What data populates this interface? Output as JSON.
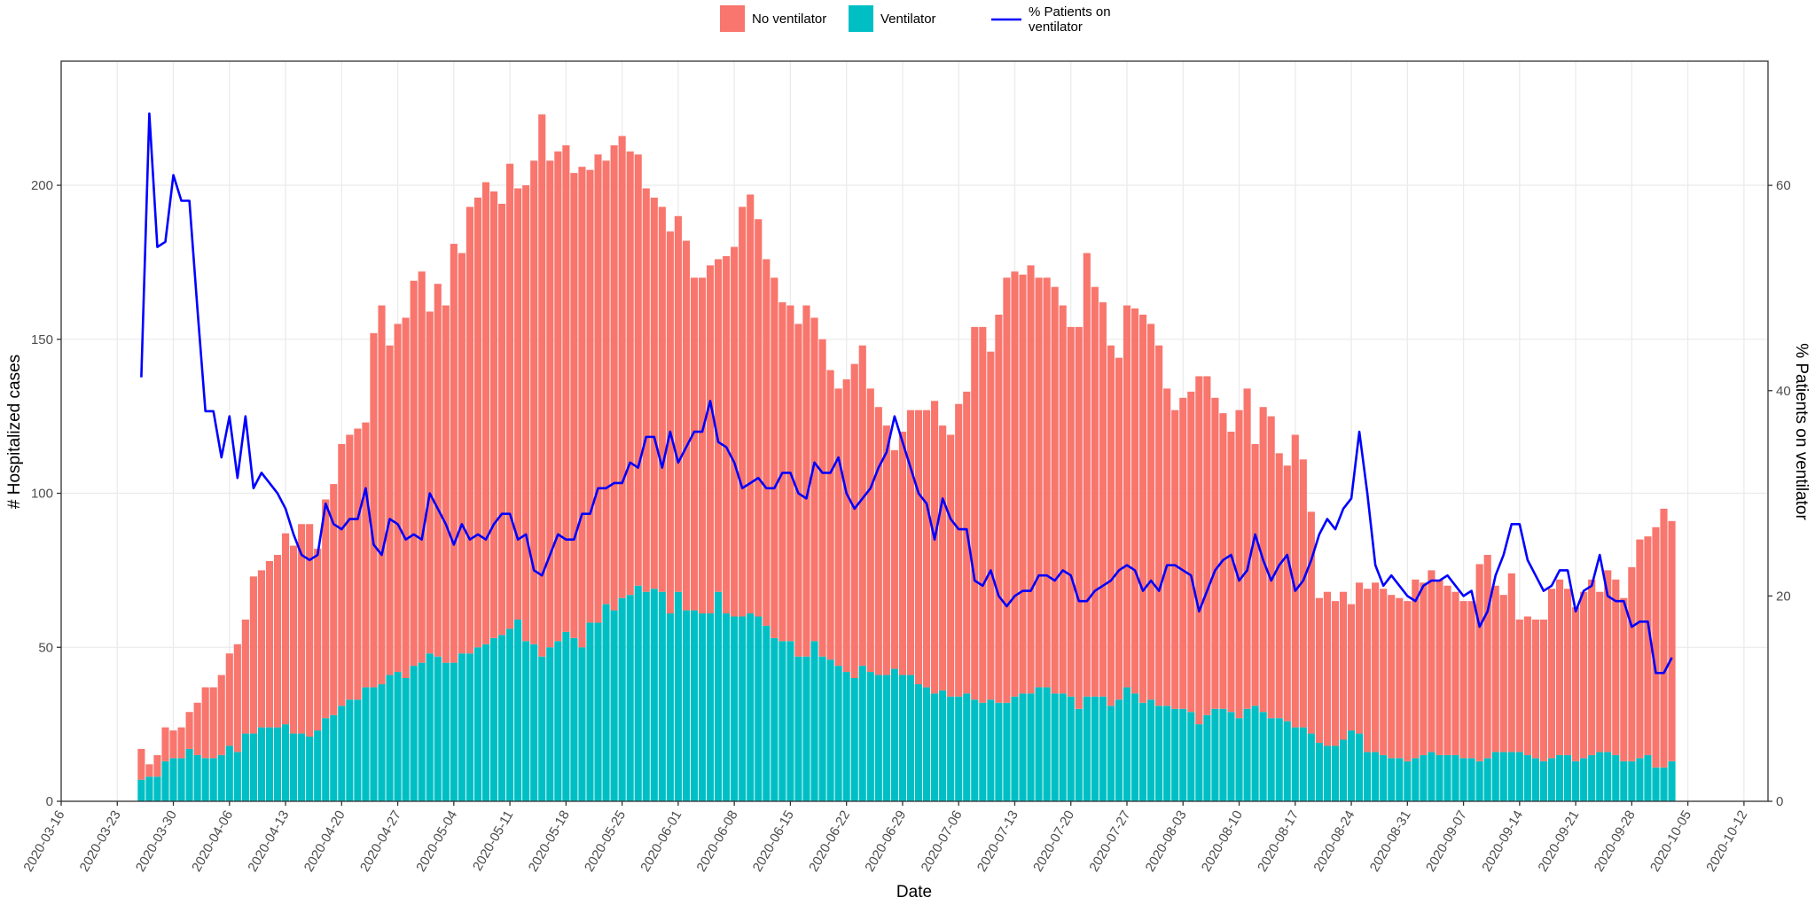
{
  "chart_data": {
    "type": "bar",
    "x_label": "Date",
    "y_label": "# Hospitalized cases",
    "y2_label": "% Patients on ventilator",
    "x": [
      "2020-03-26",
      "2020-03-27",
      "2020-03-28",
      "2020-03-29",
      "2020-03-30",
      "2020-03-31",
      "2020-04-01",
      "2020-04-02",
      "2020-04-03",
      "2020-04-04",
      "2020-04-05",
      "2020-04-06",
      "2020-04-07",
      "2020-04-08",
      "2020-04-09",
      "2020-04-10",
      "2020-04-11",
      "2020-04-12",
      "2020-04-13",
      "2020-04-14",
      "2020-04-15",
      "2020-04-16",
      "2020-04-17",
      "2020-04-18",
      "2020-04-19",
      "2020-04-20",
      "2020-04-21",
      "2020-04-22",
      "2020-04-23",
      "2020-04-24",
      "2020-04-25",
      "2020-04-26",
      "2020-04-27",
      "2020-04-28",
      "2020-04-29",
      "2020-04-30",
      "2020-05-01",
      "2020-05-02",
      "2020-05-03",
      "2020-05-04",
      "2020-05-05",
      "2020-05-06",
      "2020-05-07",
      "2020-05-08",
      "2020-05-09",
      "2020-05-10",
      "2020-05-11",
      "2020-05-12",
      "2020-05-13",
      "2020-05-14",
      "2020-05-15",
      "2020-05-16",
      "2020-05-17",
      "2020-05-18",
      "2020-05-19",
      "2020-05-20",
      "2020-05-21",
      "2020-05-22",
      "2020-05-23",
      "2020-05-24",
      "2020-05-25",
      "2020-05-26",
      "2020-05-27",
      "2020-05-28",
      "2020-05-29",
      "2020-05-30",
      "2020-05-31",
      "2020-06-01",
      "2020-06-02",
      "2020-06-03",
      "2020-06-04",
      "2020-06-05",
      "2020-06-06",
      "2020-06-07",
      "2020-06-08",
      "2020-06-09",
      "2020-06-10",
      "2020-06-11",
      "2020-06-12",
      "2020-06-13",
      "2020-06-14",
      "2020-06-15",
      "2020-06-16",
      "2020-06-17",
      "2020-06-18",
      "2020-06-19",
      "2020-06-20",
      "2020-06-21",
      "2020-06-22",
      "2020-06-23",
      "2020-06-24",
      "2020-06-25",
      "2020-06-26",
      "2020-06-27",
      "2020-06-28",
      "2020-06-29",
      "2020-06-30",
      "2020-07-01",
      "2020-07-02",
      "2020-07-03",
      "2020-07-04",
      "2020-07-05",
      "2020-07-06",
      "2020-07-07",
      "2020-07-08",
      "2020-07-09",
      "2020-07-10",
      "2020-07-11",
      "2020-07-12",
      "2020-07-13",
      "2020-07-14",
      "2020-07-15",
      "2020-07-16",
      "2020-07-17",
      "2020-07-18",
      "2020-07-19",
      "2020-07-20",
      "2020-07-21",
      "2020-07-22",
      "2020-07-23",
      "2020-07-24",
      "2020-07-25",
      "2020-07-26",
      "2020-07-27",
      "2020-07-28",
      "2020-07-29",
      "2020-07-30",
      "2020-07-31",
      "2020-08-01",
      "2020-08-02",
      "2020-08-03",
      "2020-08-04",
      "2020-08-05",
      "2020-08-06",
      "2020-08-07",
      "2020-08-08",
      "2020-08-09",
      "2020-08-10",
      "2020-08-11",
      "2020-08-12",
      "2020-08-13",
      "2020-08-14",
      "2020-08-15",
      "2020-08-16",
      "2020-08-17",
      "2020-08-18",
      "2020-08-19",
      "2020-08-20",
      "2020-08-21",
      "2020-08-22",
      "2020-08-23",
      "2020-08-24",
      "2020-08-25",
      "2020-08-26",
      "2020-08-27",
      "2020-08-28",
      "2020-08-29",
      "2020-08-30",
      "2020-08-31",
      "2020-09-01",
      "2020-09-02",
      "2020-09-03",
      "2020-09-04",
      "2020-09-05",
      "2020-09-06",
      "2020-09-07",
      "2020-09-08",
      "2020-09-09",
      "2020-09-10",
      "2020-09-11",
      "2020-09-12",
      "2020-09-13",
      "2020-09-14",
      "2020-09-15",
      "2020-09-16",
      "2020-09-17",
      "2020-09-18",
      "2020-09-19",
      "2020-09-20",
      "2020-09-21",
      "2020-09-22",
      "2020-09-23",
      "2020-09-24",
      "2020-09-25",
      "2020-09-26",
      "2020-09-27",
      "2020-09-28",
      "2020-09-29",
      "2020-09-30",
      "2020-10-01",
      "2020-10-02",
      "2020-10-03"
    ],
    "series": [
      {
        "name": "No ventilator",
        "color": "#F8766D",
        "values": [
          10,
          4,
          7,
          11,
          9,
          10,
          12,
          17,
          23,
          23,
          26,
          30,
          35,
          37,
          51,
          51,
          54,
          56,
          62,
          61,
          68,
          69,
          59,
          71,
          75,
          85,
          86,
          88,
          86,
          115,
          123,
          107,
          113,
          117,
          125,
          127,
          111,
          121,
          116,
          136,
          130,
          145,
          146,
          150,
          145,
          140,
          151,
          140,
          148,
          157,
          176,
          158,
          159,
          158,
          151,
          156,
          147,
          152,
          144,
          151,
          150,
          144,
          140,
          131,
          127,
          125,
          124,
          122,
          120,
          108,
          109,
          113,
          108,
          116,
          120,
          133,
          136,
          129,
          119,
          117,
          110,
          109,
          108,
          114,
          105,
          103,
          94,
          90,
          95,
          102,
          104,
          92,
          87,
          81,
          71,
          79,
          86,
          89,
          90,
          95,
          86,
          85,
          95,
          98,
          121,
          122,
          113,
          126,
          138,
          138,
          136,
          139,
          133,
          133,
          132,
          126,
          120,
          124,
          144,
          133,
          128,
          117,
          111,
          124,
          125,
          126,
          122,
          117,
          103,
          97,
          101,
          104,
          113,
          110,
          101,
          96,
          91,
          100,
          104,
          85,
          99,
          98,
          86,
          83,
          95,
          87,
          72,
          47,
          50,
          47,
          48,
          41,
          49,
          53,
          55,
          54,
          53,
          52,
          52,
          58,
          56,
          59,
          57,
          55,
          53,
          51,
          51,
          64,
          66,
          54,
          51,
          58,
          43,
          45,
          45,
          46,
          55,
          57,
          54,
          50,
          54,
          57,
          52,
          59,
          57,
          53,
          63,
          71,
          71,
          78,
          84,
          78
        ]
      },
      {
        "name": "Ventilator",
        "color": "#00BFC4",
        "values": [
          7,
          8,
          8,
          13,
          14,
          14,
          17,
          15,
          14,
          14,
          15,
          18,
          16,
          22,
          22,
          24,
          24,
          24,
          25,
          22,
          22,
          21,
          23,
          27,
          28,
          31,
          33,
          33,
          37,
          37,
          38,
          41,
          42,
          40,
          44,
          45,
          48,
          47,
          45,
          45,
          48,
          48,
          50,
          51,
          53,
          54,
          56,
          59,
          52,
          51,
          47,
          50,
          52,
          55,
          53,
          50,
          58,
          58,
          64,
          62,
          66,
          67,
          70,
          68,
          69,
          68,
          61,
          68,
          62,
          62,
          61,
          61,
          68,
          61,
          60,
          60,
          61,
          60,
          57,
          53,
          52,
          52,
          47,
          47,
          52,
          47,
          46,
          44,
          42,
          40,
          44,
          42,
          41,
          41,
          43,
          41,
          41,
          38,
          37,
          35,
          36,
          34,
          34,
          35,
          33,
          32,
          33,
          32,
          32,
          34,
          35,
          35,
          37,
          37,
          35,
          35,
          34,
          30,
          34,
          34,
          34,
          31,
          33,
          37,
          35,
          32,
          33,
          31,
          31,
          30,
          30,
          29,
          25,
          28,
          30,
          30,
          29,
          27,
          30,
          31,
          29,
          27,
          27,
          26,
          24,
          24,
          22,
          19,
          18,
          18,
          20,
          23,
          22,
          16,
          16,
          15,
          14,
          14,
          13,
          14,
          15,
          16,
          15,
          15,
          15,
          14,
          14,
          13,
          14,
          16,
          16,
          16,
          16,
          15,
          14,
          13,
          14,
          15,
          15,
          13,
          14,
          15,
          16,
          16,
          15,
          13,
          13,
          14,
          15,
          11,
          11,
          13
        ]
      },
      {
        "name": "% Patients on\nventilator",
        "color": "#0000FF",
        "type": "line",
        "axis": "y2",
        "values": [
          41.3,
          67,
          54,
          54.5,
          61,
          58.5,
          58.5,
          48,
          38,
          38,
          33.5,
          37.5,
          31.5,
          37.5,
          30.5,
          32,
          31,
          30,
          28.5,
          26,
          24,
          23.5,
          24,
          29,
          27,
          26.5,
          27.5,
          27.5,
          30.5,
          25,
          24,
          27.5,
          27,
          25.5,
          26,
          25.5,
          30,
          28.5,
          27,
          25,
          27,
          25.5,
          26,
          25.5,
          27,
          28,
          28,
          25.5,
          26,
          22.5,
          22,
          24,
          26,
          25.5,
          25.5,
          28,
          28,
          30.5,
          30.5,
          31,
          31,
          33,
          32.5,
          35.5,
          35.5,
          32.5,
          36,
          33,
          34.5,
          36,
          36,
          39,
          35,
          34.5,
          33,
          30.5,
          31,
          31.5,
          30.5,
          30.5,
          32,
          32,
          30,
          29.5,
          33,
          32,
          32,
          33.5,
          30,
          28.5,
          29.5,
          30.5,
          32.5,
          34,
          37.5,
          35,
          32.5,
          30,
          29,
          25.5,
          29.5,
          27.5,
          26.5,
          26.5,
          21.5,
          21,
          22.5,
          20,
          19,
          20,
          20.5,
          20.5,
          22,
          22,
          21.5,
          22.5,
          22,
          19.5,
          19.5,
          20.5,
          21,
          21.5,
          22.5,
          23,
          22.5,
          20.5,
          21.5,
          20.5,
          23,
          23,
          22.5,
          22,
          18.5,
          20.5,
          22.5,
          23.5,
          24,
          21.5,
          22.5,
          26,
          23.5,
          21.5,
          23,
          24,
          20.5,
          21.5,
          23.5,
          26,
          27.5,
          26.5,
          28.5,
          29.5,
          36,
          30,
          23,
          21,
          22,
          21,
          20,
          19.5,
          21,
          21.5,
          21.5,
          22,
          21,
          20,
          20.5,
          17,
          18.5,
          22,
          24,
          27,
          27,
          23.5,
          22,
          20.5,
          21,
          22.5,
          22.5,
          18.5,
          20.5,
          21,
          24,
          20,
          19.5,
          19.5,
          17,
          17.5,
          17.5,
          12.5,
          12.5,
          14
        ]
      }
    ],
    "xlim": [
      "2020-03-16",
      "2020-10-15"
    ],
    "xticks": [
      "2020-03-16",
      "2020-03-23",
      "2020-03-30",
      "2020-04-06",
      "2020-04-13",
      "2020-04-20",
      "2020-04-27",
      "2020-05-04",
      "2020-05-11",
      "2020-05-18",
      "2020-05-25",
      "2020-06-01",
      "2020-06-08",
      "2020-06-15",
      "2020-06-22",
      "2020-06-29",
      "2020-07-06",
      "2020-07-13",
      "2020-07-20",
      "2020-07-27",
      "2020-08-03",
      "2020-08-10",
      "2020-08-17",
      "2020-08-24",
      "2020-08-31",
      "2020-09-07",
      "2020-09-14",
      "2020-09-21",
      "2020-09-28",
      "2020-10-05",
      "2020-10-12"
    ],
    "ylim": [
      0,
      240.3
    ],
    "yticks": [
      0,
      50,
      100,
      150,
      200
    ],
    "y2lim": [
      0,
      72.1
    ],
    "y2ticks": [
      0,
      20,
      40,
      60
    ],
    "grid": true,
    "legend": "top"
  }
}
